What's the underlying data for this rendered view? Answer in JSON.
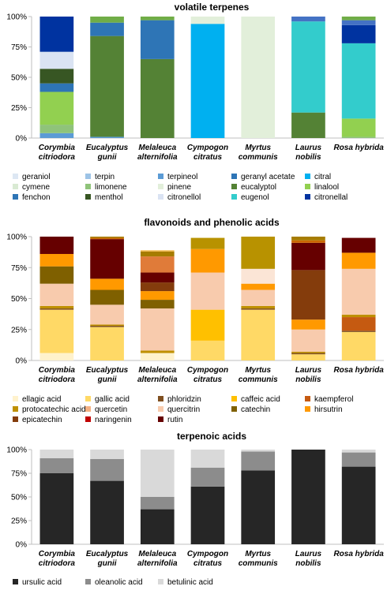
{
  "chart_data": [
    {
      "type": "bar",
      "stacked": true,
      "title": "volatile terpenes",
      "categories": [
        [
          "Corymbia",
          "citriodora"
        ],
        [
          "Eucalyptus",
          "gunii"
        ],
        [
          "Melaleuca",
          "alternifolia"
        ],
        [
          "Cympogon",
          "citratus"
        ],
        [
          "Myrtus",
          "communis"
        ],
        [
          "Laurus",
          "nobilis"
        ],
        [
          "Rosa hybrida"
        ]
      ],
      "yticks": [
        "0%",
        "25%",
        "50%",
        "75%",
        "100%"
      ],
      "ylim": [
        0,
        100
      ],
      "legend_position": "bottom",
      "series": [
        {
          "name": "geraniol",
          "color": "#dde7f3",
          "values": [
            0,
            0,
            0,
            0,
            0,
            0,
            0
          ]
        },
        {
          "name": "terpin",
          "color": "#9dc3e6",
          "values": [
            0,
            0,
            0,
            0,
            0,
            0,
            0
          ]
        },
        {
          "name": "terpineol",
          "color": "#5b9bd5",
          "values": [
            4,
            1,
            0,
            0,
            0,
            0,
            0
          ]
        },
        {
          "name": "geranyl acetate",
          "color": "#2e75b6",
          "values": [
            0,
            0,
            0,
            0,
            0,
            0,
            0
          ]
        },
        {
          "name": "citral",
          "color": "#00b0f0",
          "values": [
            0,
            0,
            0,
            94,
            0,
            0,
            0
          ]
        },
        {
          "name": "cymene",
          "color": "#d9ead3",
          "values": [
            0,
            0,
            0,
            0,
            0,
            0,
            0
          ]
        },
        {
          "name": "limonene",
          "color": "#8fc37a",
          "values": [
            7,
            0,
            0,
            0,
            0,
            0,
            1
          ]
        },
        {
          "name": "pinene",
          "color": "#e2efda",
          "values": [
            0,
            0,
            0,
            6,
            100,
            0,
            0
          ]
        },
        {
          "name": "eucalyptol",
          "color": "#548235",
          "values": [
            0,
            83,
            65,
            0,
            0,
            21,
            0
          ]
        },
        {
          "name": "linalool",
          "color": "#92d050",
          "values": [
            27,
            0,
            0,
            0,
            0,
            0,
            15
          ]
        },
        {
          "name": "fenchon",
          "color": "#2e75b6",
          "values": [
            7,
            11,
            32,
            0,
            0,
            0,
            0
          ]
        },
        {
          "name": "menthol",
          "color": "#375623",
          "values": [
            12,
            0,
            0,
            0,
            0,
            0,
            0
          ]
        },
        {
          "name": "citronellol",
          "color": "#dae3f3",
          "values": [
            14,
            0,
            0,
            0,
            0,
            0,
            0
          ]
        },
        {
          "name": "eugenol",
          "color": "#33cccc",
          "values": [
            0,
            0,
            0,
            0,
            0,
            75,
            62
          ]
        },
        {
          "name": "citronellal",
          "color": "#0033a0",
          "values": [
            29,
            0,
            0,
            0,
            0,
            0,
            15
          ]
        },
        {
          "name": "",
          "color": "#4472c4",
          "values": [
            0,
            0,
            0,
            0,
            0,
            4,
            4
          ]
        },
        {
          "name": "",
          "color": "#70ad47",
          "values": [
            0,
            5,
            3,
            0,
            0,
            0,
            3
          ]
        }
      ]
    },
    {
      "type": "bar",
      "stacked": true,
      "title": "flavonoids and phenolic acids",
      "categories": [
        [
          "Corymbia",
          "citriodora"
        ],
        [
          "Eucalyptus",
          "gunii"
        ],
        [
          "Melaleuca",
          "alternifolia"
        ],
        [
          "Cympogon",
          "citratus"
        ],
        [
          "Myrtus",
          "communis"
        ],
        [
          "Laurus",
          "nobilis"
        ],
        [
          "Rosa hybrida"
        ]
      ],
      "yticks": [
        "0%",
        "25%",
        "50%",
        "75%",
        "100%"
      ],
      "ylim": [
        0,
        100
      ],
      "legend_position": "bottom",
      "series": [
        {
          "name": "ellagic acid",
          "color": "#fff2cc",
          "values": [
            6,
            0,
            6,
            0,
            0,
            0,
            0
          ]
        },
        {
          "name": "gallic acid",
          "color": "#ffd966",
          "values": [
            35,
            27,
            0,
            16,
            41,
            5,
            23
          ]
        },
        {
          "name": "phloridzin",
          "color": "#7f4f1f",
          "values": [
            1,
            1,
            0,
            0,
            1,
            1,
            1
          ]
        },
        {
          "name": "caffeic acid",
          "color": "#ffc000",
          "values": [
            0,
            0,
            0,
            25,
            0,
            0,
            0
          ]
        },
        {
          "name": "kaempferol",
          "color": "#c55a11",
          "values": [
            0,
            0,
            0,
            0,
            0,
            0,
            11
          ]
        },
        {
          "name": "protocatechic acid",
          "color": "#bf9000",
          "values": [
            2,
            1,
            2,
            0,
            2,
            1,
            2
          ]
        },
        {
          "name": "quercetin",
          "color": "#f4b183",
          "values": [
            0,
            0,
            0,
            0,
            0,
            0,
            0
          ]
        },
        {
          "name": "quercitrin",
          "color": "#f8cbad",
          "values": [
            18,
            16,
            34,
            30,
            13,
            18,
            37
          ]
        },
        {
          "name": "catechin",
          "color": "#7f6000",
          "values": [
            14,
            12,
            7,
            0,
            0,
            0,
            0
          ]
        },
        {
          "name": "hirsutrin",
          "color": "#ff9900",
          "values": [
            10,
            9,
            7,
            19,
            5,
            8,
            13
          ]
        },
        {
          "name": "epicatechin",
          "color": "#843c0c",
          "values": [
            0,
            0,
            7,
            0,
            0,
            40,
            0
          ]
        },
        {
          "name": "naringenin",
          "color": "#c00000",
          "values": [
            0,
            0,
            0,
            0,
            0,
            0,
            0
          ]
        },
        {
          "name": "rutin",
          "color": "#660000",
          "values": [
            14,
            32,
            8,
            0,
            0,
            22,
            12
          ]
        },
        {
          "name": "",
          "color": "#fbe5d6",
          "values": [
            0,
            0,
            0,
            0,
            12,
            0,
            0
          ]
        },
        {
          "name": "",
          "color": "#cc6600",
          "values": [
            0,
            1,
            0,
            0,
            0,
            2,
            0
          ]
        },
        {
          "name": "",
          "color": "#e07b39",
          "values": [
            0,
            0,
            13,
            0,
            0,
            0,
            0
          ]
        },
        {
          "name": "",
          "color": "#b89200",
          "values": [
            0,
            0,
            0,
            9,
            26,
            0,
            0
          ]
        },
        {
          "name": "",
          "color": "#a67c00",
          "values": [
            0,
            1,
            4,
            0,
            0,
            3,
            0
          ]
        },
        {
          "name": "",
          "color": "#f2b84b",
          "values": [
            0,
            0,
            1,
            0,
            0,
            0,
            0
          ]
        }
      ]
    },
    {
      "type": "bar",
      "stacked": true,
      "title": "terpenoic acids",
      "categories": [
        [
          "Corymbia",
          "citriodora"
        ],
        [
          "Eucalyptus",
          "gunii"
        ],
        [
          "Melaleuca",
          "alternifolia"
        ],
        [
          "Cympogon",
          "citratus"
        ],
        [
          "Myrtus",
          "communis"
        ],
        [
          "Laurus",
          "nobilis"
        ],
        [
          "Rosa hybrida"
        ]
      ],
      "yticks": [
        "0%",
        "25%",
        "50%",
        "75%",
        "100%"
      ],
      "ylim": [
        0,
        100
      ],
      "legend_position": "bottom",
      "series": [
        {
          "name": "ursulic acid",
          "color": "#262626",
          "values": [
            75,
            67,
            37,
            61,
            78,
            100,
            82
          ]
        },
        {
          "name": "oleanolic acid",
          "color": "#8c8c8c",
          "values": [
            16,
            23,
            13,
            20,
            20,
            0,
            15
          ]
        },
        {
          "name": "betulinic acid",
          "color": "#d9d9d9",
          "values": [
            9,
            10,
            50,
            19,
            2,
            0,
            3
          ]
        }
      ]
    }
  ]
}
